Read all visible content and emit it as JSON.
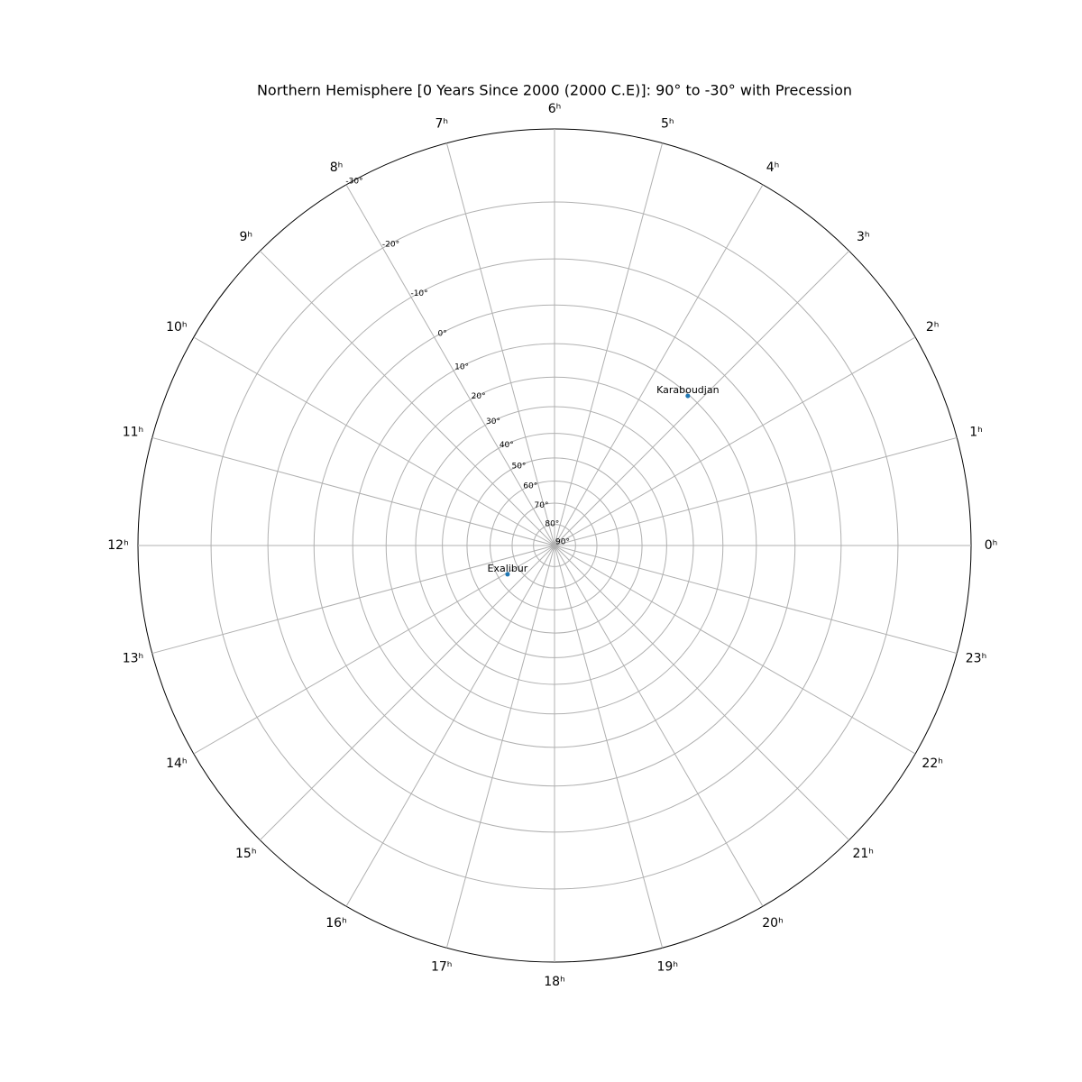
{
  "chart_data": {
    "type": "polar-scatter",
    "title": "Northern Hemisphere [0 Years Since 2000 (2000 C.E)]: 90° to -30° with Precession",
    "radial_scale": "stereographic",
    "labels": [
      "Karaboudjan",
      "Exalibur"
    ],
    "x": [
      3.22,
      14.1
    ],
    "values": [
      10.4,
      64.2
    ],
    "color": "#1f77b4",
    "xlim": [
      0,
      24
    ],
    "xticks": [
      {
        "value": 0,
        "label": "0ʰ"
      },
      {
        "value": 1,
        "label": "1ʰ"
      },
      {
        "value": 2,
        "label": "2ʰ"
      },
      {
        "value": 3,
        "label": "3ʰ"
      },
      {
        "value": 4,
        "label": "4ʰ"
      },
      {
        "value": 5,
        "label": "5ʰ"
      },
      {
        "value": 6,
        "label": "6ʰ"
      },
      {
        "value": 7,
        "label": "7ʰ"
      },
      {
        "value": 8,
        "label": "8ʰ"
      },
      {
        "value": 9,
        "label": "9ʰ"
      },
      {
        "value": 10,
        "label": "10ʰ"
      },
      {
        "value": 11,
        "label": "11ʰ"
      },
      {
        "value": 12,
        "label": "12ʰ"
      },
      {
        "value": 13,
        "label": "13ʰ"
      },
      {
        "value": 14,
        "label": "14ʰ"
      },
      {
        "value": 15,
        "label": "15ʰ"
      },
      {
        "value": 16,
        "label": "16ʰ"
      },
      {
        "value": 17,
        "label": "17ʰ"
      },
      {
        "value": 18,
        "label": "18ʰ"
      },
      {
        "value": 19,
        "label": "19ʰ"
      },
      {
        "value": 20,
        "label": "20ʰ"
      },
      {
        "value": 21,
        "label": "21ʰ"
      },
      {
        "value": 22,
        "label": "22ʰ"
      },
      {
        "value": 23,
        "label": "23ʰ"
      }
    ],
    "ylim": [
      90,
      -30
    ],
    "yticks": [
      {
        "value": 90,
        "label": "90°"
      },
      {
        "value": 80,
        "label": "80°"
      },
      {
        "value": 70,
        "label": "70°"
      },
      {
        "value": 60,
        "label": "60°"
      },
      {
        "value": 50,
        "label": "50°"
      },
      {
        "value": 40,
        "label": "40°"
      },
      {
        "value": 30,
        "label": "30°"
      },
      {
        "value": 20,
        "label": "20°"
      },
      {
        "value": 10,
        "label": "10°"
      },
      {
        "value": 0,
        "label": "0°"
      },
      {
        "value": -10,
        "label": "-10°"
      },
      {
        "value": -20,
        "label": "-20°"
      },
      {
        "value": -30,
        "label": "-30°"
      }
    ],
    "grid": true
  }
}
